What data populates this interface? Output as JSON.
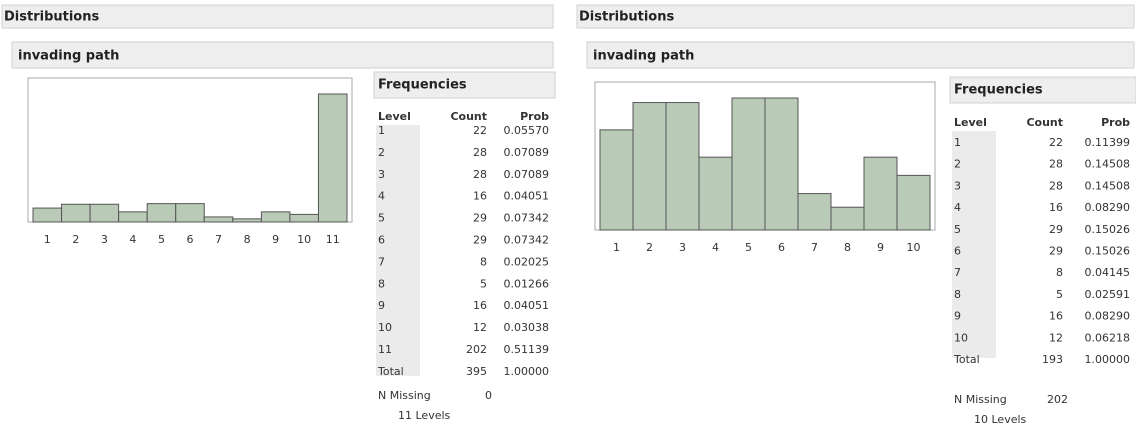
{
  "panels": [
    {
      "header": "Distributions",
      "subheader": "invading path",
      "frequencies": {
        "title": "Frequencies",
        "columns": [
          "Level",
          "Count",
          "Prob"
        ],
        "rows": [
          [
            "1",
            22,
            "0.05570"
          ],
          [
            "2",
            28,
            "0.07089"
          ],
          [
            "3",
            28,
            "0.07089"
          ],
          [
            "4",
            16,
            "0.04051"
          ],
          [
            "5",
            29,
            "0.07342"
          ],
          [
            "6",
            29,
            "0.07342"
          ],
          [
            "7",
            8,
            "0.02025"
          ],
          [
            "8",
            5,
            "0.01266"
          ],
          [
            "9",
            16,
            "0.04051"
          ],
          [
            "10",
            12,
            "0.03038"
          ],
          [
            "11",
            202,
            "0.51139"
          ]
        ],
        "total": [
          "Total",
          395,
          "1.00000"
        ]
      },
      "n_missing_label": "N Missing",
      "n_missing": 0,
      "levels": "11 Levels"
    },
    {
      "header": "Distributions",
      "subheader": "invading path",
      "frequencies": {
        "title": "Frequencies",
        "columns": [
          "Level",
          "Count",
          "Prob"
        ],
        "rows": [
          [
            "1",
            22,
            "0.11399"
          ],
          [
            "2",
            28,
            "0.14508"
          ],
          [
            "3",
            28,
            "0.14508"
          ],
          [
            "4",
            16,
            "0.08290"
          ],
          [
            "5",
            29,
            "0.15026"
          ],
          [
            "6",
            29,
            "0.15026"
          ],
          [
            "7",
            8,
            "0.04145"
          ],
          [
            "8",
            5,
            "0.02591"
          ],
          [
            "9",
            16,
            "0.08290"
          ],
          [
            "10",
            12,
            "0.06218"
          ]
        ],
        "total": [
          "Total",
          193,
          "1.00000"
        ]
      },
      "n_missing_label": "N Missing",
      "n_missing": 202,
      "levels": "10 Levels"
    }
  ]
}
